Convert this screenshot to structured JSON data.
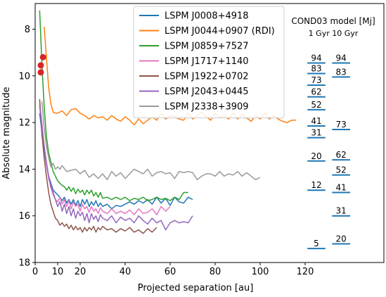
{
  "chart_data": {
    "type": "line",
    "title": "",
    "xlabel": "Projected separation [au]",
    "ylabel": "Absolute magnitude",
    "xlim": [
      0,
      155
    ],
    "ylim": [
      18,
      6.9
    ],
    "y_inverted": true,
    "xticks": [
      {
        "value": 0,
        "label": "0"
      },
      {
        "value": 10,
        "label": "10"
      },
      {
        "value": 20,
        "label": "20"
      },
      {
        "value": 40,
        "label": "40"
      },
      {
        "value": 60,
        "label": "60"
      },
      {
        "value": 80,
        "label": "80"
      },
      {
        "value": 100,
        "label": "100"
      },
      {
        "value": 120,
        "label": "120"
      }
    ],
    "yticks": [
      {
        "value": 8,
        "label": "8"
      },
      {
        "value": 10,
        "label": "10"
      },
      {
        "value": 12,
        "label": "12"
      },
      {
        "value": 14,
        "label": "14"
      },
      {
        "value": 16,
        "label": "16"
      },
      {
        "value": 18,
        "label": "18"
      }
    ],
    "grid": false,
    "legend_position": "top-center",
    "series": [
      {
        "name": "LSPM J0008+4918",
        "color": "#1f77b4",
        "x": [
          2,
          3,
          4,
          5,
          6,
          7,
          8,
          9,
          10,
          11,
          12,
          13,
          14,
          15,
          16,
          17,
          18,
          19,
          20,
          21,
          22,
          23,
          24,
          25,
          26,
          27,
          28,
          29,
          30,
          32,
          34,
          36,
          38,
          40,
          42,
          44,
          46,
          48,
          50,
          52,
          54,
          56,
          58,
          60,
          62,
          64,
          66,
          68,
          70
        ],
        "y": [
          11.6,
          12.4,
          13.2,
          13.8,
          14.3,
          14.6,
          14.9,
          15.0,
          15.1,
          15.2,
          15.35,
          15.2,
          15.45,
          15.3,
          15.5,
          15.3,
          15.55,
          15.35,
          15.6,
          15.3,
          15.5,
          15.3,
          15.6,
          15.4,
          15.55,
          15.35,
          15.6,
          15.45,
          15.6,
          15.5,
          15.7,
          15.55,
          15.6,
          15.5,
          15.4,
          15.5,
          15.35,
          15.45,
          15.3,
          15.5,
          15.2,
          15.45,
          15.25,
          15.55,
          15.2,
          15.4,
          15.45,
          15.2,
          15.3
        ]
      },
      {
        "name": "LSPM J0044+0907 (RDI)",
        "color": "#ff7f0e",
        "x": [
          4,
          5,
          6,
          7,
          8,
          9,
          10,
          12,
          14,
          16,
          18,
          20,
          22,
          24,
          26,
          28,
          30,
          32,
          34,
          36,
          38,
          40,
          42,
          44,
          46,
          48,
          50,
          52,
          54,
          56,
          58,
          60,
          62,
          64,
          66,
          68,
          70,
          72,
          74,
          76,
          78,
          80,
          82,
          84,
          86,
          88,
          90,
          92,
          94,
          96,
          98,
          100,
          102,
          104,
          106,
          108,
          110,
          112,
          114,
          116
        ],
        "y": [
          7.9,
          9.2,
          10.5,
          11.2,
          11.55,
          11.6,
          11.6,
          11.5,
          11.7,
          11.45,
          11.4,
          11.6,
          11.7,
          11.85,
          11.7,
          11.8,
          11.75,
          11.9,
          11.7,
          11.85,
          11.95,
          11.75,
          11.9,
          12.1,
          11.85,
          12.05,
          11.9,
          11.75,
          11.9,
          11.6,
          11.85,
          11.7,
          11.75,
          11.85,
          11.9,
          11.6,
          11.85,
          11.7,
          11.55,
          11.75,
          11.9,
          11.6,
          11.8,
          11.7,
          11.85,
          11.6,
          11.85,
          11.65,
          11.8,
          11.95,
          11.7,
          11.85,
          11.6,
          11.85,
          11.7,
          11.85,
          11.95,
          12.0,
          11.9,
          11.9
        ]
      },
      {
        "name": "LSPM J0859+7527",
        "color": "#2ca02c",
        "x": [
          2,
          3,
          4,
          5,
          6,
          7,
          8,
          9,
          10,
          11,
          12,
          13,
          14,
          15,
          16,
          17,
          18,
          19,
          20,
          21,
          22,
          23,
          24,
          25,
          26,
          27,
          28,
          29,
          30,
          32,
          34,
          36,
          38,
          40,
          42,
          44,
          46,
          48,
          50,
          52,
          54,
          56,
          58,
          60,
          62,
          64,
          66,
          68
        ],
        "y": [
          7.2,
          9.5,
          11.3,
          12.6,
          13.3,
          13.7,
          14.1,
          14.3,
          14.5,
          14.6,
          14.7,
          14.75,
          14.9,
          14.75,
          14.95,
          14.8,
          15.05,
          14.85,
          15.0,
          14.9,
          15.1,
          14.9,
          15.05,
          14.9,
          15.15,
          15.0,
          15.2,
          15.0,
          15.25,
          15.2,
          15.3,
          15.2,
          15.3,
          15.2,
          15.35,
          15.25,
          15.3,
          15.2,
          15.35,
          15.3,
          15.2,
          15.3,
          15.25,
          15.35,
          15.2,
          15.3,
          15.0,
          15.0
        ]
      },
      {
        "name": "LSPM J1717+1140",
        "color": "#e377c2",
        "x": [
          2,
          3,
          4,
          5,
          6,
          7,
          8,
          9,
          10,
          11,
          12,
          13,
          14,
          15,
          16,
          17,
          18,
          19,
          20,
          21,
          22,
          23,
          24,
          25,
          26,
          27,
          28,
          29,
          30,
          32,
          34,
          36,
          38,
          40,
          42,
          44,
          46,
          48,
          50,
          52,
          54,
          56,
          58,
          60
        ],
        "y": [
          11.2,
          12.0,
          13.0,
          13.8,
          14.4,
          14.8,
          15.1,
          15.3,
          15.4,
          15.2,
          15.5,
          15.3,
          15.6,
          15.35,
          15.7,
          15.4,
          15.6,
          15.5,
          15.8,
          15.5,
          15.7,
          15.6,
          15.85,
          15.6,
          15.8,
          15.7,
          15.9,
          15.65,
          15.8,
          15.9,
          15.7,
          15.9,
          15.8,
          15.9,
          15.75,
          15.95,
          15.7,
          15.9,
          15.85,
          15.7,
          15.95,
          15.6,
          15.8,
          15.6
        ]
      },
      {
        "name": "LSPM J1922+0702",
        "color": "#8c564b",
        "x": [
          2,
          3,
          4,
          5,
          6,
          7,
          8,
          9,
          10,
          11,
          12,
          13,
          14,
          15,
          16,
          17,
          18,
          19,
          20,
          21,
          22,
          23,
          24,
          25,
          26,
          27,
          28,
          29,
          30,
          32,
          34,
          36,
          38,
          40,
          42,
          44,
          46,
          48,
          50,
          52,
          54
        ],
        "y": [
          11.0,
          12.5,
          13.5,
          14.3,
          15.0,
          15.5,
          15.8,
          16.1,
          16.2,
          16.4,
          16.3,
          16.45,
          16.35,
          16.55,
          16.4,
          16.6,
          16.45,
          16.6,
          16.5,
          16.7,
          16.5,
          16.65,
          16.5,
          16.6,
          16.45,
          16.7,
          16.5,
          16.6,
          16.45,
          16.6,
          16.55,
          16.7,
          16.55,
          16.65,
          16.5,
          16.7,
          16.6,
          16.75,
          16.55,
          16.7,
          16.5
        ]
      },
      {
        "name": "LSPM J2043+0445",
        "color": "#9467bd",
        "x": [
          2,
          3,
          4,
          5,
          6,
          7,
          8,
          9,
          10,
          11,
          12,
          13,
          14,
          15,
          16,
          17,
          18,
          19,
          20,
          21,
          22,
          23,
          24,
          25,
          26,
          27,
          28,
          29,
          30,
          32,
          34,
          36,
          38,
          40,
          42,
          44,
          46,
          48,
          50,
          52,
          54,
          56,
          58,
          60,
          62,
          64,
          66,
          68,
          70
        ],
        "y": [
          11.3,
          12.2,
          13.0,
          13.7,
          14.3,
          14.7,
          15.0,
          15.3,
          15.6,
          15.4,
          15.8,
          15.5,
          15.9,
          15.6,
          16.0,
          15.7,
          16.1,
          15.8,
          16.0,
          15.85,
          16.2,
          15.9,
          16.3,
          15.9,
          16.15,
          16.0,
          16.25,
          15.95,
          16.1,
          16.2,
          16.0,
          16.3,
          16.05,
          16.2,
          16.1,
          16.3,
          16.0,
          16.2,
          16.35,
          16.1,
          16.3,
          16.2,
          16.6,
          16.3,
          16.2,
          16.3,
          16.25,
          16.3,
          16.0
        ]
      },
      {
        "name": "LSPM J2338+3909",
        "color": "#999999",
        "x": [
          3,
          4,
          5,
          6,
          7,
          8,
          9,
          10,
          11,
          12,
          14,
          16,
          18,
          20,
          22,
          24,
          26,
          28,
          30,
          32,
          34,
          36,
          38,
          40,
          42,
          44,
          46,
          48,
          50,
          52,
          54,
          56,
          58,
          60,
          62,
          64,
          66,
          68,
          70,
          72,
          74,
          76,
          78,
          80,
          82,
          84,
          86,
          88,
          90,
          92,
          94,
          96,
          98,
          100
        ],
        "y": [
          11.1,
          12.2,
          13.0,
          13.5,
          13.9,
          13.75,
          14.0,
          13.9,
          14.0,
          13.85,
          14.1,
          14.05,
          14.0,
          14.2,
          14.05,
          14.35,
          14.2,
          14.4,
          14.2,
          14.45,
          14.1,
          14.3,
          14.15,
          14.4,
          14.2,
          14.0,
          14.1,
          14.2,
          14.0,
          14.3,
          14.15,
          14.1,
          14.2,
          14.15,
          14.4,
          14.1,
          14.15,
          14.1,
          14.15,
          14.45,
          14.3,
          14.2,
          14.2,
          14.3,
          14.1,
          14.3,
          14.2,
          14.25,
          14.1,
          14.3,
          14.15,
          14.3,
          14.45,
          14.35
        ]
      }
    ],
    "markers": {
      "color": "#d62728",
      "points": [
        {
          "x": 3.5,
          "y": 9.2
        },
        {
          "x": 2.5,
          "y": 9.55
        },
        {
          "x": 2.5,
          "y": 9.85
        }
      ]
    },
    "model_annotation": {
      "title": "COND03 model [Mj]",
      "subtitle": "1 Gyr 10 Gyr",
      "columns": [
        {
          "x_range": [
            121,
            129
          ],
          "levels": [
            {
              "label": "94",
              "y": 9.45
            },
            {
              "label": "83",
              "y": 9.9
            },
            {
              "label": "73",
              "y": 10.4
            },
            {
              "label": "62",
              "y": 10.9
            },
            {
              "label": "52",
              "y": 11.45
            },
            {
              "label": "41",
              "y": 12.15
            },
            {
              "label": "31",
              "y": 12.65
            },
            {
              "label": "20",
              "y": 13.65
            },
            {
              "label": "12",
              "y": 14.9
            },
            {
              "label": "5",
              "y": 17.4
            }
          ]
        },
        {
          "x_range": [
            132,
            140
          ],
          "levels": [
            {
              "label": "94",
              "y": 9.45
            },
            {
              "label": "83",
              "y": 10.05
            },
            {
              "label": "73",
              "y": 12.3
            },
            {
              "label": "62",
              "y": 13.6
            },
            {
              "label": "52",
              "y": 14.25
            },
            {
              "label": "41",
              "y": 15.0
            },
            {
              "label": "31",
              "y": 16.0
            },
            {
              "label": "20",
              "y": 17.2
            }
          ]
        }
      ]
    }
  }
}
